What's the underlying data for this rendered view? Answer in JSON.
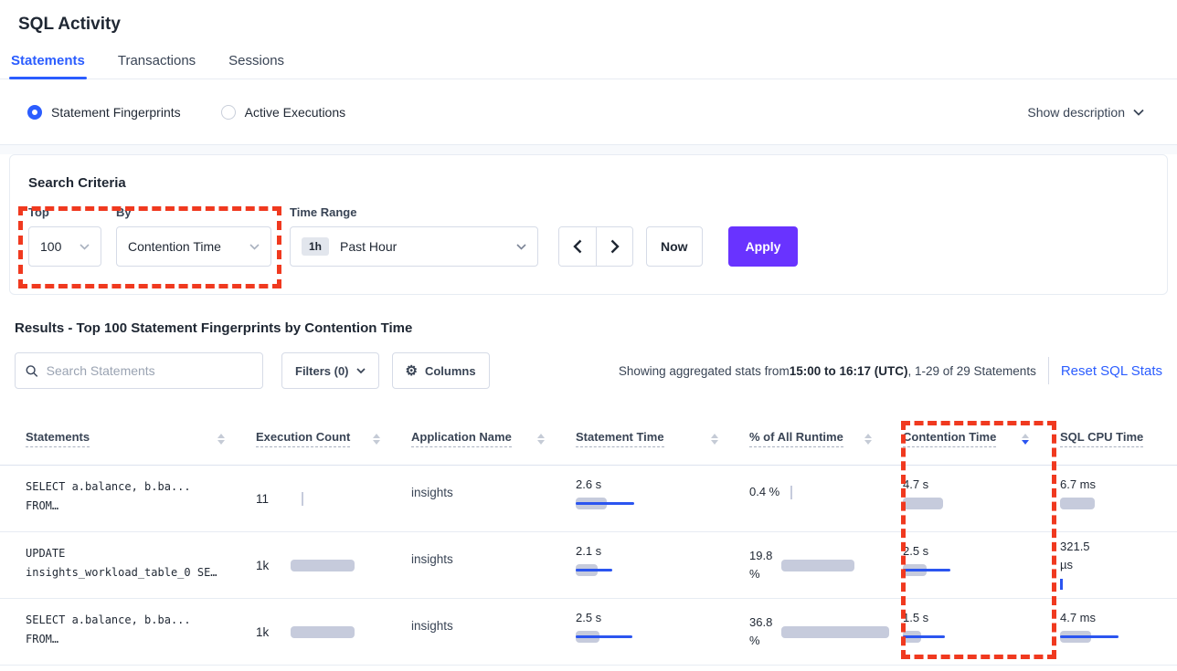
{
  "page": {
    "title": "SQL Activity"
  },
  "tabs": [
    {
      "label": "Statements",
      "active": true
    },
    {
      "label": "Transactions",
      "active": false
    },
    {
      "label": "Sessions",
      "active": false
    }
  ],
  "view_toggle": {
    "options": [
      {
        "label": "Statement Fingerprints",
        "selected": true
      },
      {
        "label": "Active Executions",
        "selected": false
      }
    ],
    "show_description": "Show description"
  },
  "search_criteria": {
    "title": "Search Criteria",
    "top": {
      "label": "Top",
      "value": "100"
    },
    "by": {
      "label": "By",
      "value": "Contention Time"
    },
    "time_range": {
      "label": "Time Range",
      "badge": "1h",
      "value": "Past Hour"
    },
    "now_label": "Now",
    "apply_label": "Apply"
  },
  "results": {
    "heading": "Results - Top 100 Statement Fingerprints by Contention Time",
    "search_placeholder": "Search Statements",
    "filters_label": "Filters (0)",
    "columns_label": "Columns",
    "stats_prefix": "Showing aggregated stats from ",
    "stats_bold": "15:00 to 16:17 (UTC)",
    "stats_suffix": ", 1-29 of 29 Statements",
    "reset_label": "Reset SQL Stats"
  },
  "table": {
    "headers": [
      "Statements",
      "Execution Count",
      "Application Name",
      "Statement Time",
      "% of All Runtime",
      "Contention Time",
      "SQL CPU Time"
    ],
    "sorted": {
      "column": "Contention Time",
      "direction": "desc"
    },
    "rows": [
      {
        "statement_line1": "SELECT a.balance, b.ba...",
        "statement_line2": "FROM…",
        "execution_count": "11",
        "application": "insights",
        "statement_time": "2.6 s",
        "pct_runtime": "0.4 %",
        "contention_time": "4.7 s",
        "sql_cpu_time": "6.7 ms",
        "bars": {
          "statement_gray": 34,
          "statement_blue": 64,
          "contention_gray": 44,
          "cpu_gray": 38
        }
      },
      {
        "statement_line1": "UPDATE",
        "statement_line2": "insights_workload_table_0 SE…",
        "execution_count": "1k",
        "application": "insights",
        "statement_time": "2.1 s",
        "pct_runtime": "19.8 %",
        "contention_time": "2.5 s",
        "sql_cpu_time": "321.5 µs",
        "bars": {
          "execution_gray": 70,
          "statement_gray": 24,
          "statement_blue": 40,
          "runtime_gray": 80,
          "contention_gray": 26,
          "contention_blue": 52
        }
      },
      {
        "statement_line1": "SELECT a.balance, b.ba...",
        "statement_line2": "FROM…",
        "execution_count": "1k",
        "application": "insights",
        "statement_time": "2.5 s",
        "pct_runtime": "36.8 %",
        "contention_time": "1.5 s",
        "sql_cpu_time": "4.7 ms",
        "bars": {
          "execution_gray": 70,
          "statement_gray": 26,
          "statement_blue": 62,
          "runtime_gray": 118,
          "contention_gray": 20,
          "contention_blue": 46,
          "cpu_gray": 34,
          "cpu_blue": 64
        }
      }
    ]
  },
  "colors": {
    "blue": "#2b5dff",
    "purple": "#6933ff",
    "red": "#f0391f",
    "bar-gray": "#c6cbdc",
    "bar-blue": "#2b55f0"
  }
}
